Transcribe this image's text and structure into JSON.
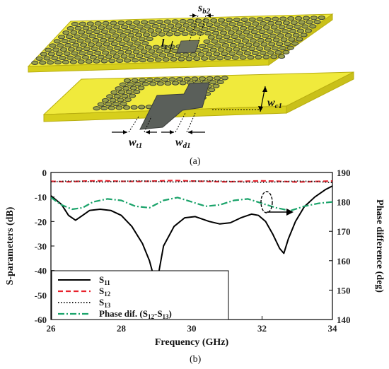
{
  "figure_a": {
    "caption": "(a)",
    "labels": {
      "sb2": "s",
      "sb2_sub": "b2",
      "lc": "l",
      "lc_sub": "c",
      "wc1": "w",
      "wc1_sub": "c1",
      "wt1": "w",
      "wt1_sub": "t1",
      "wd1": "w",
      "wd1_sub": "d1"
    },
    "colors": {
      "board": "#f0ea3c",
      "board_side": "#d7cf1c",
      "via": "#4a4f4a",
      "pad": "#9aa04a"
    }
  },
  "figure_b": {
    "caption": "(b)",
    "colors": {
      "s11": "#000000",
      "s12": "#e8232d",
      "s13": "#222222",
      "phase": "#1aa36a"
    }
  },
  "chart_data": {
    "type": "line",
    "xlabel": "Frequency (GHz)",
    "ylabel": "S-parameters (dB)",
    "y2label": "Phase difference (deg)",
    "xlim": [
      26,
      34
    ],
    "ylim": [
      -60,
      0
    ],
    "y2lim": [
      140,
      190
    ],
    "xticks": [
      "26",
      "28",
      "30",
      "32",
      "34"
    ],
    "yticks": [
      "0",
      "-10",
      "-20",
      "-30",
      "-40",
      "-50",
      "-60"
    ],
    "y2ticks": [
      "190",
      "180",
      "170",
      "160",
      "150",
      "140"
    ],
    "legend_position": "bottom-left",
    "series": [
      {
        "name": "S11",
        "name_main": "S",
        "name_sub": "11",
        "axis": "left",
        "style": "solid",
        "x": [
          26.0,
          26.3,
          26.5,
          26.7,
          26.9,
          27.1,
          27.4,
          27.7,
          28.0,
          28.3,
          28.6,
          28.8,
          28.95,
          29.05,
          29.2,
          29.5,
          29.8,
          30.1,
          30.5,
          30.8,
          31.1,
          31.4,
          31.7,
          31.9,
          32.1,
          32.3,
          32.5,
          32.62,
          32.75,
          32.95,
          33.2,
          33.5,
          33.8,
          34.0
        ],
        "y": [
          -9.5,
          -13,
          -17.5,
          -19.5,
          -17.5,
          -15.5,
          -15,
          -15.5,
          -17.5,
          -22,
          -29,
          -36,
          -44,
          -42,
          -30,
          -22,
          -18.5,
          -18,
          -20,
          -21,
          -20.5,
          -18.5,
          -17,
          -17.5,
          -20,
          -25,
          -31,
          -33,
          -27,
          -20,
          -14,
          -10,
          -7,
          -5.5
        ]
      },
      {
        "name": "S12",
        "name_main": "S",
        "name_sub": "12",
        "axis": "left",
        "style": "dash",
        "x": [
          26.0,
          26.5,
          27.0,
          27.5,
          28.0,
          28.5,
          29.0,
          29.5,
          30.0,
          30.5,
          31.0,
          31.5,
          32.0,
          32.5,
          33.0,
          33.5,
          34.0
        ],
        "y": [
          -3.6,
          -3.8,
          -3.5,
          -3.4,
          -3.6,
          -3.7,
          -3.5,
          -3.3,
          -3.5,
          -3.7,
          -3.8,
          -3.6,
          -3.4,
          -3.6,
          -3.9,
          -3.7,
          -3.5
        ]
      },
      {
        "name": "S13",
        "name_main": "S",
        "name_sub": "13",
        "axis": "left",
        "style": "dot",
        "x": [
          26.0,
          26.5,
          27.0,
          27.5,
          28.0,
          28.5,
          29.0,
          29.5,
          30.0,
          30.5,
          31.0,
          31.5,
          32.0,
          32.5,
          33.0,
          33.5,
          34.0
        ],
        "y": [
          -3.8,
          -3.5,
          -3.7,
          -3.9,
          -3.6,
          -3.4,
          -3.7,
          -3.9,
          -3.6,
          -3.4,
          -3.6,
          -3.9,
          -4.0,
          -3.8,
          -3.5,
          -3.7,
          -4.1
        ]
      },
      {
        "name": "Phase dif. (S12-S13)",
        "name_main": "Phase dif. (S",
        "name_sub": "12",
        "name_mid": "-S",
        "name_sub2": "13",
        "name_end": ")",
        "axis": "right",
        "style": "dashdot",
        "x": [
          26.0,
          26.3,
          26.6,
          26.9,
          27.2,
          27.6,
          28.0,
          28.4,
          28.8,
          29.2,
          29.6,
          30.0,
          30.4,
          30.8,
          31.2,
          31.6,
          32.0,
          32.4,
          32.8,
          33.2,
          33.6,
          34.0
        ],
        "y": [
          181.5,
          179,
          177.5,
          178,
          180,
          181,
          180.5,
          178.5,
          178,
          180.5,
          181.5,
          180,
          178.5,
          179,
          180.5,
          181,
          179.5,
          178,
          177,
          178.5,
          179.5,
          180
        ]
      }
    ]
  }
}
